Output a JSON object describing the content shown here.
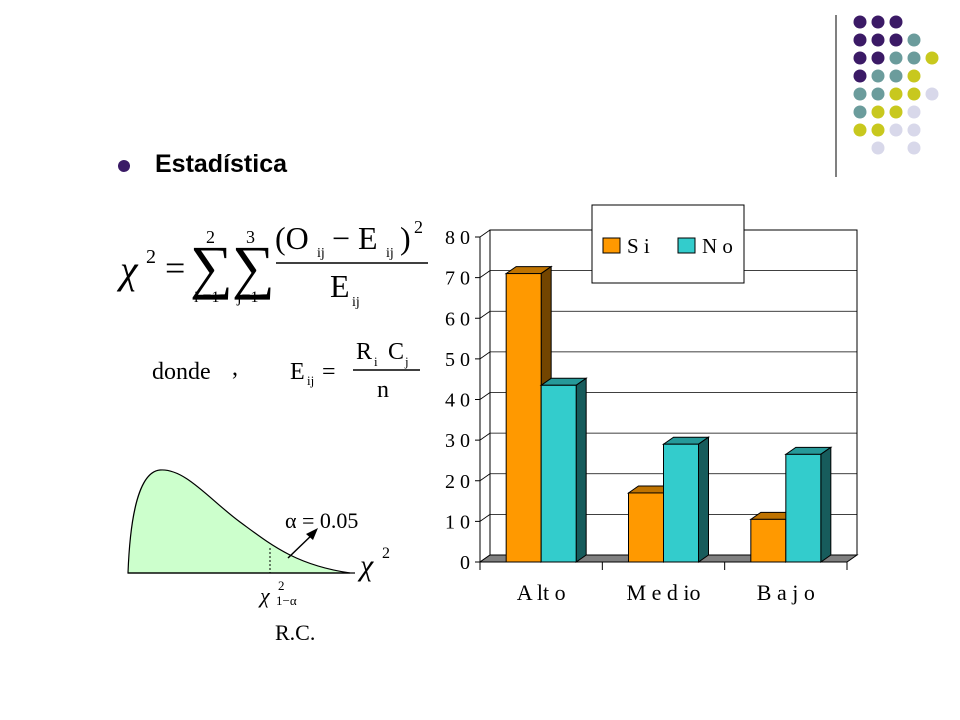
{
  "decor": {
    "dot_colors": [
      "#3b1a66",
      "#6b9c9c",
      "#c8c81e",
      "#d8d8ea"
    ]
  },
  "slide": {
    "heading": "Estadística"
  },
  "formula": {
    "chi_symbol": "χ",
    "exp2": "2",
    "equals": "=",
    "sum1_top": "2",
    "sum1_bottom": "i =1",
    "sum2_top": "3",
    "sum2_bottom": "j=1",
    "sigma": "∑",
    "numerator": "(O",
    "num_sub1": "ij",
    "num_minus": "− E",
    "num_sub2": "ij",
    "num_close": ")",
    "num_exp": "2",
    "denominator": "E",
    "den_sub": "ij",
    "donde": "donde",
    "comma": ",",
    "e_label": "E",
    "e_sub": "ij",
    "e_equals": "=",
    "frac_num_r": "R",
    "frac_num_i": "i",
    "frac_num_c": "C",
    "frac_num_j": "j",
    "frac_den": "n"
  },
  "distribution": {
    "alpha_label": "α = 0.05",
    "chi_label": "χ",
    "chi_exp": "2",
    "critical_label": "χ",
    "critical_exp": "2",
    "critical_sub": "1−α",
    "rc_label": "R.C."
  },
  "chart_data": {
    "type": "bar",
    "categories": [
      "A lt o",
      "M e d io",
      "B a j o"
    ],
    "series": [
      {
        "name": "S i",
        "values": [
          71,
          17,
          10.5
        ],
        "color": "#ff9900"
      },
      {
        "name": "N o",
        "values": [
          43.5,
          29,
          26.5
        ],
        "color": "#33cccc"
      }
    ],
    "y_ticks": [
      "0",
      "1 0",
      "2 0",
      "3 0",
      "4 0",
      "5 0",
      "6 0",
      "7 0",
      "8 0"
    ],
    "ylim": [
      0,
      80
    ],
    "title": "",
    "xlabel": "",
    "ylabel": "",
    "grid": true,
    "legend_position": "top-right",
    "three_d": true
  }
}
